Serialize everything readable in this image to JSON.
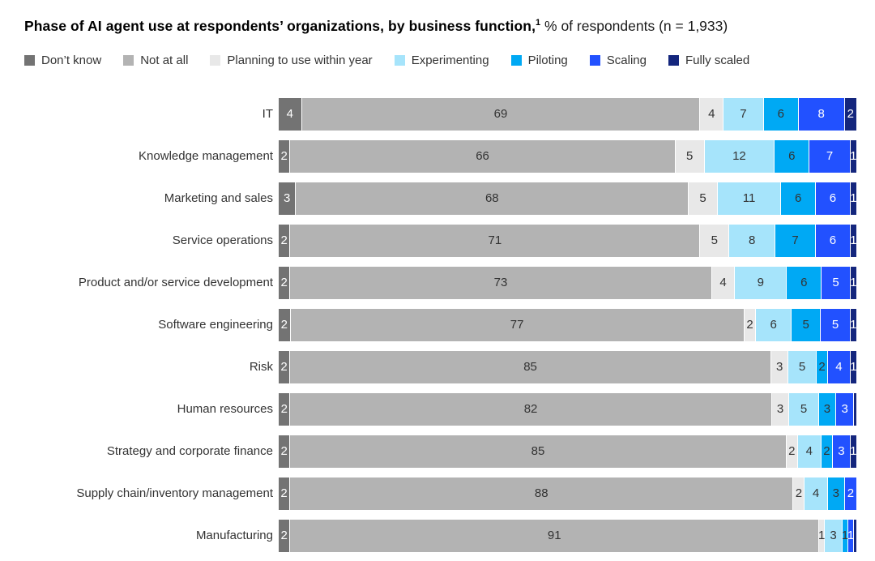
{
  "title": {
    "bold": "Phase of AI agent use at respondents’ organizations, by business function,",
    "superscript": "1",
    "regular": " % of respondents (n = 1,933)"
  },
  "colors": {
    "dont_know": "#737373",
    "not_at_all": "#b3b3b3",
    "planning": "#e8e8e8",
    "experimenting": "#a6e4fb",
    "piloting": "#00a9f4",
    "scaling": "#2251ff",
    "fully_scaled": "#14267d",
    "label_dark": "#333333",
    "label_light": "#ffffff"
  },
  "legend": [
    {
      "label": "Don’t know",
      "color_key": "dont_know"
    },
    {
      "label": "Not at all",
      "color_key": "not_at_all"
    },
    {
      "label": "Planning to use within year",
      "color_key": "planning"
    },
    {
      "label": "Experimenting",
      "color_key": "experimenting"
    },
    {
      "label": "Piloting",
      "color_key": "piloting"
    },
    {
      "label": "Scaling",
      "color_key": "scaling"
    },
    {
      "label": "Fully scaled",
      "color_key": "fully_scaled"
    }
  ],
  "chart_data": {
    "type": "bar",
    "stacked": true,
    "orientation": "horizontal",
    "title": "Phase of AI agent use at respondents’ organizations, by business function",
    "unit": "% of respondents",
    "n": "1,933",
    "series_names": [
      "Don’t know",
      "Not at all",
      "Planning to use within year",
      "Experimenting",
      "Piloting",
      "Scaling",
      "Fully scaled"
    ],
    "series_color_keys": [
      "dont_know",
      "not_at_all",
      "planning",
      "experimenting",
      "piloting",
      "scaling",
      "fully_scaled"
    ],
    "white_text_series": [
      true,
      false,
      false,
      false,
      false,
      true,
      true
    ],
    "rows": [
      {
        "label": "IT",
        "values": [
          4,
          69,
          4,
          7,
          6,
          8,
          2
        ],
        "display": [
          "4",
          "69",
          "4",
          "7",
          "6",
          "8",
          "2"
        ]
      },
      {
        "label": "Knowledge management",
        "values": [
          2,
          66,
          5,
          12,
          6,
          7,
          1
        ],
        "display": [
          "2",
          "66",
          "5",
          "12",
          "6",
          "7",
          "1"
        ]
      },
      {
        "label": "Marketing and sales",
        "values": [
          3,
          68,
          5,
          11,
          6,
          6,
          1
        ],
        "display": [
          "3",
          "68",
          "5",
          "11",
          "6",
          "6",
          "1"
        ]
      },
      {
        "label": "Service operations",
        "values": [
          2,
          71,
          5,
          8,
          7,
          6,
          1
        ],
        "display": [
          "2",
          "71",
          "5",
          "8",
          "7",
          "6",
          "1"
        ]
      },
      {
        "label": "Product and/or service development",
        "values": [
          2,
          73,
          4,
          9,
          6,
          5,
          1
        ],
        "display": [
          "2",
          "73",
          "4",
          "9",
          "6",
          "5",
          "1"
        ]
      },
      {
        "label": "Software engineering",
        "values": [
          2,
          77,
          2,
          6,
          5,
          5,
          1
        ],
        "display": [
          "2",
          "77",
          "2",
          "6",
          "5",
          "5",
          "1"
        ]
      },
      {
        "label": "Risk",
        "values": [
          2,
          85,
          3,
          5,
          2,
          4,
          1
        ],
        "display": [
          "2",
          "85",
          "3",
          "5",
          "2",
          "4",
          "1"
        ]
      },
      {
        "label": "Human resources",
        "values": [
          2,
          82,
          3,
          5,
          3,
          3,
          0.4
        ],
        "display": [
          "2",
          "82",
          "3",
          "5",
          "3",
          "3",
          ""
        ]
      },
      {
        "label": "Strategy and corporate finance",
        "values": [
          2,
          85,
          2,
          4,
          2,
          3,
          1
        ],
        "display": [
          "2",
          "85",
          "2",
          "4",
          "2",
          "3",
          "1"
        ]
      },
      {
        "label": "Supply chain/inventory management",
        "values": [
          2,
          88,
          2,
          4,
          3,
          2,
          0
        ],
        "display": [
          "2",
          "88",
          "2",
          "4",
          "3",
          "2",
          ""
        ]
      },
      {
        "label": "Manufacturing",
        "values": [
          2,
          91,
          1,
          3,
          1,
          1,
          0.4
        ],
        "display": [
          "2",
          "91",
          "1",
          "3",
          "1",
          "1",
          ""
        ]
      }
    ]
  }
}
